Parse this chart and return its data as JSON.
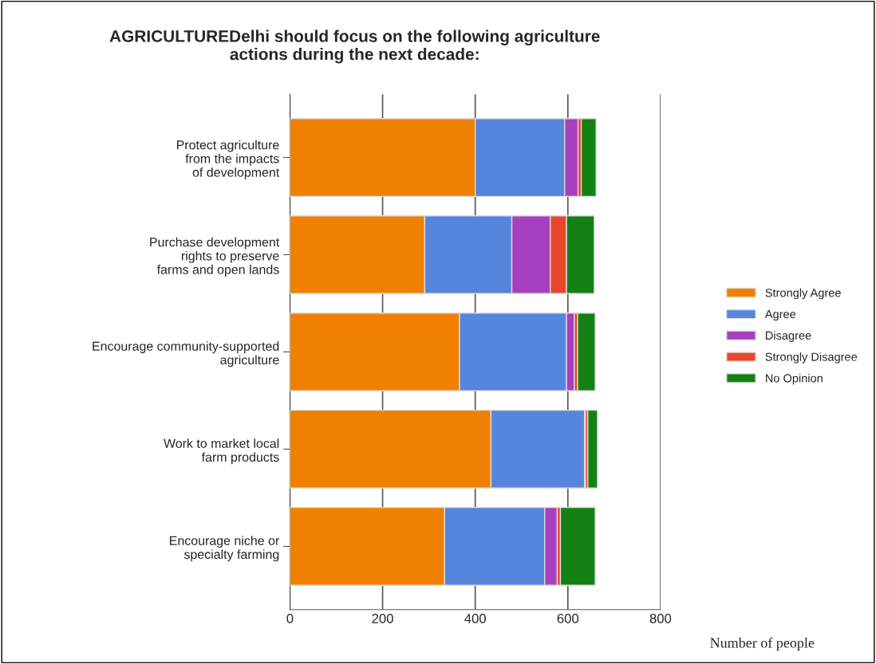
{
  "chart_data": {
    "type": "bar",
    "orientation": "horizontal",
    "stacked": true,
    "title": "AGRICULTUREDelhi should focus on the following agriculture\nactions during the next decade:",
    "xlabel": "Number of people",
    "categories": [
      "Protect agriculture\nfrom the impacts\nof development",
      "Purchase development\nrights to preserve\nfarms and open lands",
      "Encourage community-supported\nagriculture",
      "Work to market local\nfarm products",
      "Encourage niche or\nspecialty farming"
    ],
    "series": [
      {
        "name": "Strongly Agree",
        "color": "#f08000",
        "values": [
          400,
          291,
          366,
          434,
          334
        ]
      },
      {
        "name": "Agree",
        "color": "#5585dd",
        "values": [
          193,
          188,
          231,
          202,
          216
        ]
      },
      {
        "name": "Disagree",
        "color": "#a640c0",
        "values": [
          29,
          83,
          17,
          2,
          27
        ]
      },
      {
        "name": "Strongly Disagree",
        "color": "#e8472c",
        "values": [
          7,
          35,
          7,
          5,
          7
        ]
      },
      {
        "name": "No Opinion",
        "color": "#138113",
        "values": [
          32,
          60,
          38,
          21,
          75
        ]
      }
    ],
    "xlim": [
      0,
      800
    ],
    "xticks": [
      0,
      200,
      400,
      600,
      800
    ],
    "grid": "x",
    "legend": "right"
  }
}
